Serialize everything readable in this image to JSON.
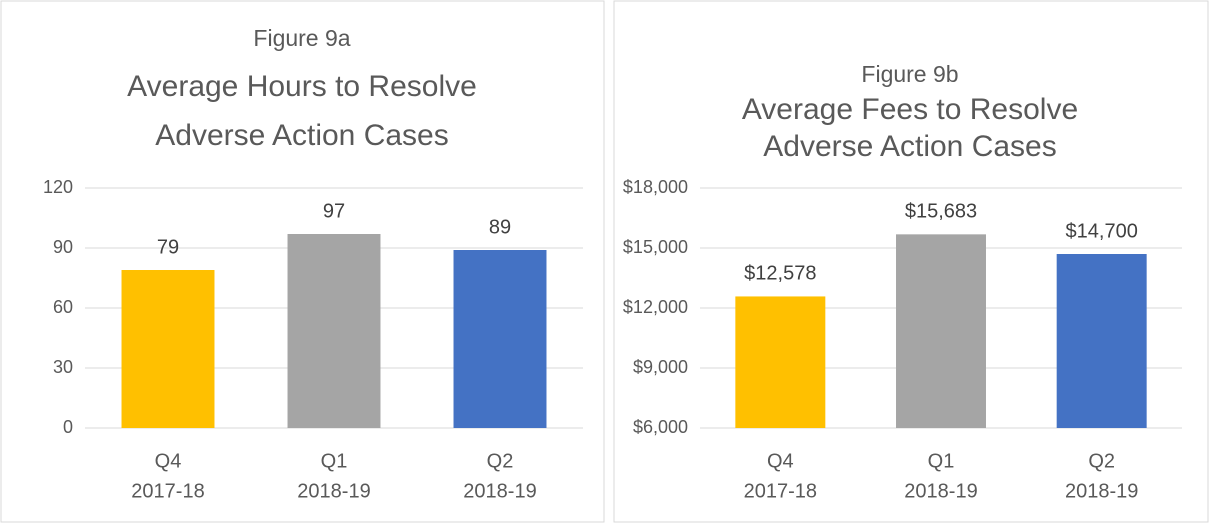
{
  "chart_data": [
    {
      "type": "bar",
      "title": "Figure 9a",
      "subtitle": [
        "Average Hours to Resolve",
        "Adverse Action Cases"
      ],
      "categories": [
        [
          "Q4",
          "2017-18"
        ],
        [
          "Q1",
          "2018-19"
        ],
        [
          "Q2",
          "2018-19"
        ]
      ],
      "values": [
        79,
        97,
        89
      ],
      "colors": [
        "#ffc000",
        "#a5a5a5",
        "#4472c4"
      ],
      "ylim": [
        0,
        120
      ],
      "yticks": [
        0,
        30,
        60,
        90,
        120
      ],
      "grid": true
    },
    {
      "type": "bar",
      "title": "Figure 9b",
      "subtitle": [
        "Average Fees to Resolve",
        "Adverse Action Cases"
      ],
      "categories": [
        [
          "Q4",
          "2017-18"
        ],
        [
          "Q1",
          "2018-19"
        ],
        [
          "Q2",
          "2018-19"
        ]
      ],
      "values": [
        12578,
        15683,
        14700
      ],
      "value_labels": [
        "$12,578",
        "$15,683",
        "$14,700"
      ],
      "colors": [
        "#ffc000",
        "#a5a5a5",
        "#4472c4"
      ],
      "ylim": [
        6000,
        18000
      ],
      "yticks": [
        {
          "value": 6000,
          "label": "$6,000"
        },
        {
          "value": 9000,
          "label": "$9,000"
        },
        {
          "value": 12000,
          "label": "$12,000"
        },
        {
          "value": 15000,
          "label": "$15,000"
        },
        {
          "value": 18000,
          "label": "$18,000"
        }
      ],
      "grid": true
    }
  ]
}
